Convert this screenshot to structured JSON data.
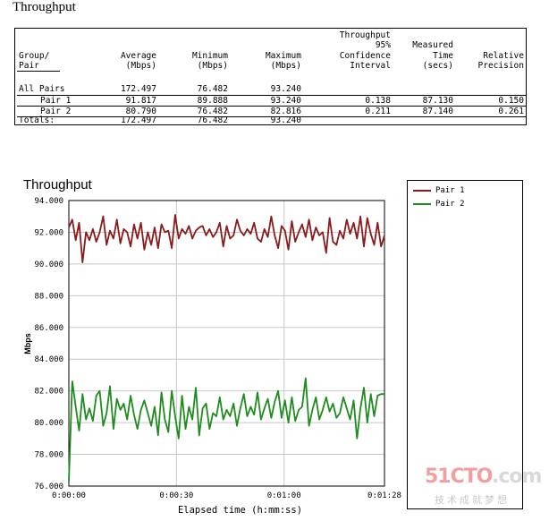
{
  "table": {
    "title": "Throughput",
    "headers": {
      "group": [
        "Group/",
        "Pair"
      ],
      "average": [
        "Average",
        "(Mbps)"
      ],
      "minimum": [
        "Minimum",
        "(Mbps)"
      ],
      "maximum": [
        "Maximum",
        "(Mbps)"
      ],
      "confidence": [
        "Throughput",
        "95%",
        "Confidence",
        "Interval"
      ],
      "measured": [
        "Measured",
        "Time",
        "(secs)"
      ],
      "relative": [
        "Relative",
        "Precision"
      ]
    },
    "rows": [
      {
        "group": "All Pairs",
        "average": "172.497",
        "minimum": "76.482",
        "maximum": "93.240",
        "confidence": "",
        "measured": "",
        "relative": ""
      },
      {
        "group": "Pair 1",
        "average": "91.817",
        "minimum": "89.888",
        "maximum": "93.240",
        "confidence": "0.138",
        "measured": "87.130",
        "relative": "0.150"
      },
      {
        "group": "Pair 2",
        "average": "80.790",
        "minimum": "76.482",
        "maximum": "82.816",
        "confidence": "0.211",
        "measured": "87.140",
        "relative": "0.261"
      },
      {
        "group": "Totals:",
        "average": "172.497",
        "minimum": "76.482",
        "maximum": "93.240",
        "confidence": "",
        "measured": "",
        "relative": ""
      }
    ]
  },
  "chart_data": {
    "type": "line",
    "title": "Throughput",
    "xlabel": "Elapsed time (h:mm:ss)",
    "ylabel": "Mbps",
    "ylim": [
      76,
      94
    ],
    "xlim": [
      0,
      88
    ],
    "yticks": [
      "76.000",
      "78.000",
      "80.000",
      "82.000",
      "84.000",
      "86.000",
      "88.000",
      "90.000",
      "92.000",
      "94.000"
    ],
    "xticks": [
      {
        "value": 0,
        "label": "0:00:00"
      },
      {
        "value": 30,
        "label": "0:00:30"
      },
      {
        "value": 60,
        "label": "0:01:00"
      },
      {
        "value": 88,
        "label": "0:01:28"
      }
    ],
    "grid": true,
    "legend": "right",
    "series": [
      {
        "name": "Pair 1",
        "color": "#8b1a1a",
        "values": [
          92.3,
          92.8,
          91.5,
          92.6,
          90.1,
          92.0,
          91.5,
          92.2,
          91.4,
          92.0,
          93.0,
          91.2,
          92.1,
          91.6,
          92.8,
          91.3,
          92.2,
          92.0,
          91.1,
          92.5,
          91.6,
          92.6,
          90.9,
          92.0,
          91.2,
          92.3,
          91.0,
          92.5,
          92.0,
          92.1,
          91.0,
          93.1,
          91.6,
          92.2,
          91.9,
          92.4,
          91.6,
          92.1,
          92.3,
          92.4,
          91.8,
          92.2,
          91.7,
          92.0,
          92.6,
          91.1,
          92.4,
          91.6,
          91.8,
          92.8,
          92.1,
          91.8,
          92.2,
          91.9,
          92.6,
          91.6,
          91.4,
          92.2,
          91.7,
          93.0,
          91.8,
          91.0,
          92.4,
          92.1,
          90.9,
          92.7,
          91.4,
          92.0,
          92.5,
          91.7,
          92.8,
          91.5,
          92.3,
          91.8,
          92.0,
          90.7,
          92.9,
          91.4,
          91.2,
          92.1,
          91.6,
          92.8,
          91.9,
          92.6,
          91.6,
          93.0,
          91.1,
          92.9,
          91.9,
          91.2,
          92.6,
          91.1,
          91.8
        ]
      },
      {
        "name": "Pair 2",
        "color": "#1e8c1e",
        "values": [
          76.3,
          82.6,
          81.0,
          79.5,
          81.8,
          80.2,
          80.9,
          80.1,
          81.7,
          82.0,
          79.8,
          80.6,
          82.3,
          79.6,
          81.5,
          80.8,
          81.2,
          80.2,
          81.7,
          80.5,
          79.6,
          80.8,
          81.4,
          80.6,
          79.8,
          81.0,
          79.2,
          81.9,
          80.2,
          79.4,
          82.0,
          80.4,
          79.0,
          81.7,
          79.6,
          81.0,
          80.2,
          82.2,
          79.2,
          80.9,
          81.2,
          79.6,
          80.6,
          80.4,
          81.6,
          80.2,
          80.8,
          80.4,
          81.2,
          79.8,
          80.9,
          81.8,
          80.4,
          81.0,
          80.5,
          81.9,
          80.2,
          80.9,
          81.5,
          80.3,
          81.3,
          82.0,
          80.3,
          81.4,
          80.0,
          81.6,
          80.1,
          80.8,
          81.0,
          82.8,
          79.8,
          80.8,
          81.6,
          80.2,
          80.8,
          81.6,
          80.7,
          81.2,
          80.3,
          80.6,
          81.6,
          80.9,
          80.2,
          81.4,
          79.0,
          80.9,
          82.2,
          80.0,
          81.8,
          80.4,
          81.7,
          81.8,
          81.8
        ]
      }
    ]
  },
  "watermark": {
    "brand_main": "51CTO",
    "brand_suffix": ".com",
    "sub": "技术成就梦想"
  }
}
